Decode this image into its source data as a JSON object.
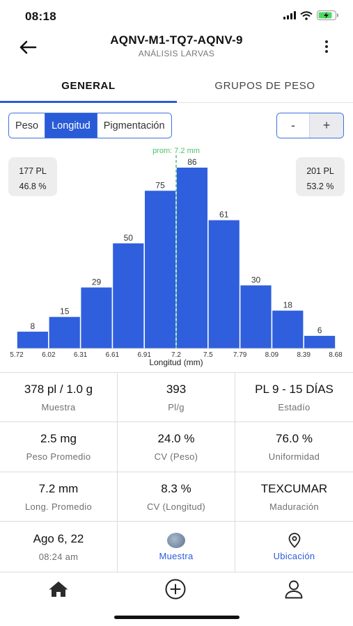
{
  "status_bar": {
    "time": "08:18"
  },
  "header": {
    "title": "AQNV-M1-TQ7-AQNV-9",
    "subtitle": "ANÁLISIS LARVAS"
  },
  "tabs": [
    {
      "label": "GENERAL"
    },
    {
      "label": "GRUPOS DE PESO"
    }
  ],
  "segments": [
    {
      "label": "Peso"
    },
    {
      "label": "Longitud"
    },
    {
      "label": "Pigmentación"
    }
  ],
  "selected_segment": "Longitud",
  "stepper": {
    "minus": "-",
    "plus": "+"
  },
  "counts": {
    "left": {
      "pl": "177 PL",
      "pct": "46.8 %"
    },
    "right": {
      "pl": "201 PL",
      "pct": "53.2 %"
    }
  },
  "chart_data": {
    "type": "bar",
    "xlabel": "Longitud (mm)",
    "bin_edges": [
      "5.72",
      "6.02",
      "6.31",
      "6.61",
      "6.91",
      "7.2",
      "7.5",
      "7.79",
      "8.09",
      "8.39",
      "8.68"
    ],
    "values": [
      8,
      15,
      29,
      50,
      75,
      86,
      61,
      30,
      18,
      6
    ],
    "bar_color": "#2f5fdc",
    "mean_label": "prom: 7.2 mm",
    "mean_value": 7.2,
    "mean_color": "#4cc26a",
    "x_range": [
      5.72,
      8.68
    ],
    "y_range": [
      0,
      86
    ]
  },
  "stats": [
    {
      "value": "378 pl / 1.0 g",
      "label": "Muestra"
    },
    {
      "value": "393",
      "label": "Pl/g"
    },
    {
      "value": "PL 9 - 15 DÍAS",
      "label": "Estadío"
    },
    {
      "value": "2.5 mg",
      "label": "Peso Promedio"
    },
    {
      "value": "24.0 %",
      "label": "CV (Peso)"
    },
    {
      "value": "76.0 %",
      "label": "Uniformidad"
    },
    {
      "value": "7.2 mm",
      "label": "Long. Promedio"
    },
    {
      "value": "8.3 %",
      "label": "CV (Longitud)"
    },
    {
      "value": "TEXCUMAR",
      "label": "Maduración"
    }
  ],
  "date_cell": {
    "date": "Ago 6, 22",
    "time": "08:24 am"
  },
  "sample_link": {
    "label": "Muestra",
    "icon": "sample-photo-thumbnail"
  },
  "location_link": {
    "label": "Ubicación",
    "icon": "location-pin-icon"
  },
  "nav": [
    {
      "icon": "home-icon"
    },
    {
      "icon": "plus-circle-icon"
    },
    {
      "icon": "user-icon"
    }
  ],
  "colors": {
    "accent": "#2a5bd7",
    "bar": "#2f5fdc",
    "mean_line": "#4cc26a"
  }
}
